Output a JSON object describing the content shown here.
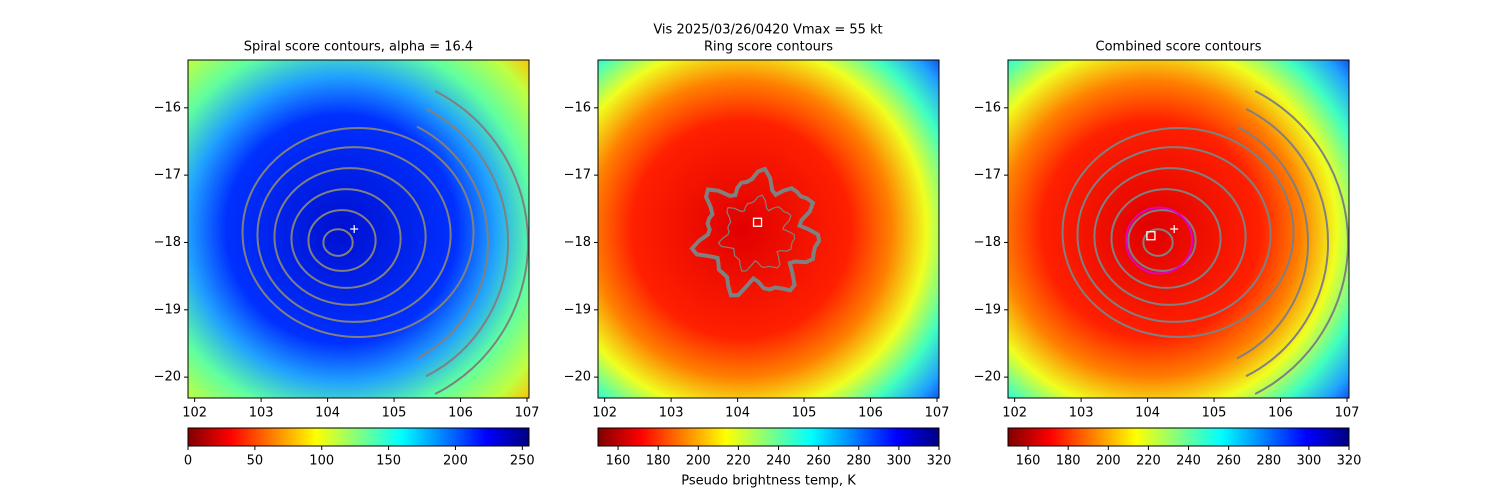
{
  "title": "Vis  2025/03/26/0420    Vmax = 55 kt",
  "chart_data": [
    {
      "type": "image",
      "title": "Spiral score contours, alpha = 16.4",
      "scene": "spiral",
      "xlim": [
        101.9,
        107.03
      ],
      "ylim": [
        -20.31,
        -15.29
      ],
      "xticks": [
        102,
        103,
        104,
        105,
        106,
        107
      ],
      "yticks": [
        {
          "value": -16,
          "label": "−16"
        },
        {
          "value": -17,
          "label": "−17"
        },
        {
          "value": -18,
          "label": "−18"
        },
        {
          "value": -19,
          "label": "−19"
        },
        {
          "value": -20,
          "label": "−20"
        }
      ],
      "markers": [
        {
          "x": 104.4,
          "y": -17.8,
          "symbol": "plus",
          "color": "#ffffff"
        }
      ],
      "colorbar": {
        "colormap": "jet_r",
        "clim": [
          0,
          255
        ],
        "ticks": [
          0,
          50,
          100,
          150,
          200,
          250
        ]
      }
    },
    {
      "type": "image",
      "title": "Ring score contours",
      "scene": "ring",
      "xlim": [
        101.9,
        107.03
      ],
      "ylim": [
        -20.31,
        -15.29
      ],
      "xticks": [
        102,
        103,
        104,
        105,
        106,
        107
      ],
      "yticks": [
        {
          "value": -16,
          "label": "−16"
        },
        {
          "value": -17,
          "label": "−17"
        },
        {
          "value": -18,
          "label": "−18"
        },
        {
          "value": -19,
          "label": "−19"
        },
        {
          "value": -20,
          "label": "−20"
        }
      ],
      "markers": [
        {
          "x": 104.3,
          "y": -17.7,
          "symbol": "square",
          "color": "#ffffff"
        }
      ],
      "colorbar": {
        "colormap": "jet_r",
        "clim": [
          150,
          320
        ],
        "ticks": [
          160,
          180,
          200,
          220,
          240,
          260,
          280,
          300,
          320
        ],
        "label": "Pseudo brightness temp, K"
      }
    },
    {
      "type": "image",
      "title": "Combined score contours",
      "scene": "combined",
      "xlim": [
        101.9,
        107.03
      ],
      "ylim": [
        -20.31,
        -15.29
      ],
      "xticks": [
        102,
        103,
        104,
        105,
        106,
        107
      ],
      "yticks": [
        {
          "value": -16,
          "label": "−16"
        },
        {
          "value": -17,
          "label": "−17"
        },
        {
          "value": -18,
          "label": "−18"
        },
        {
          "value": -19,
          "label": "−19"
        },
        {
          "value": -20,
          "label": "−20"
        }
      ],
      "markers": [
        {
          "x": 104.05,
          "y": -17.9,
          "symbol": "square",
          "color": "#ffffff"
        },
        {
          "x": 104.4,
          "y": -17.8,
          "symbol": "plus",
          "color": "#ffffff"
        }
      ],
      "colorbar": {
        "colormap": "jet_r",
        "clim": [
          150,
          320
        ],
        "ticks": [
          160,
          180,
          200,
          220,
          240,
          260,
          280,
          300,
          320
        ]
      }
    }
  ]
}
